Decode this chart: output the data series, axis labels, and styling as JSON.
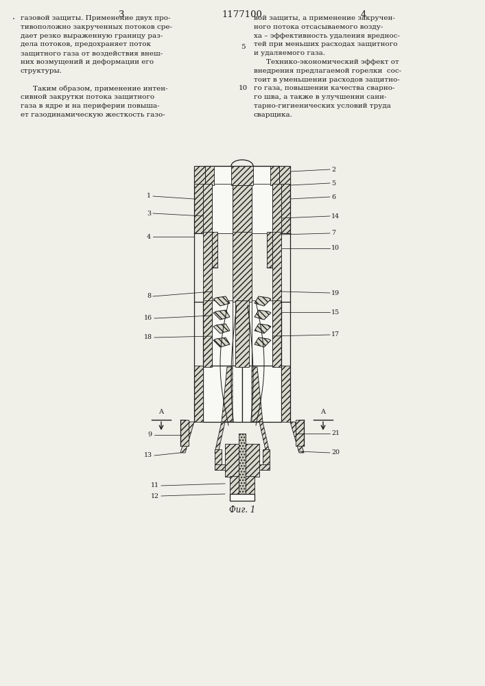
{
  "title_number": "1177100",
  "page_left": "3",
  "page_right": "4",
  "fig_caption": "Фиг. 1",
  "bg_color": "#f0efe8",
  "text_color": "#1a1a1a",
  "text_left_lines": [
    [
      "газовой защиты. Применение двух про-",
      false
    ],
    [
      "тивоположно закрученных потоков сре-",
      false
    ],
    [
      "дает резко выраженную границу раз-",
      false
    ],
    [
      "дела потоков, предохраняет поток",
      false
    ],
    [
      "защитного газа от воздействия внеш-",
      false
    ],
    [
      "них возмущений и деформации его",
      false
    ],
    [
      "структуры.",
      false
    ],
    [
      "",
      false
    ],
    [
      "Таким образом, применение интен-",
      true
    ],
    [
      "сивной закрутки потока защитного",
      false
    ],
    [
      "газа в ядре и на периферии повыша-",
      false
    ],
    [
      "ет газодинамическую жесткость газо-",
      false
    ]
  ],
  "text_right_lines": [
    [
      "вой защиты, а применение закручен-",
      false
    ],
    [
      "ного потока отсасываемого возду-",
      false
    ],
    [
      "ха – эффективность удаления вреднос-",
      false
    ],
    [
      "тей при меньших расходах защитного",
      false
    ],
    [
      "и удаляемого газа.",
      false
    ],
    [
      "Технико-экономический эффект от",
      true
    ],
    [
      "внедрения предлагаемой горелки  сос-",
      false
    ],
    [
      "тоит в уменьшении расходов защитно-",
      false
    ],
    [
      "го газа, повышении качества сварно-",
      false
    ],
    [
      "го шва, а также в улучшении сани-",
      false
    ],
    [
      "тарно-гигиенических условий труда",
      false
    ],
    [
      "сварщика.",
      false
    ]
  ]
}
